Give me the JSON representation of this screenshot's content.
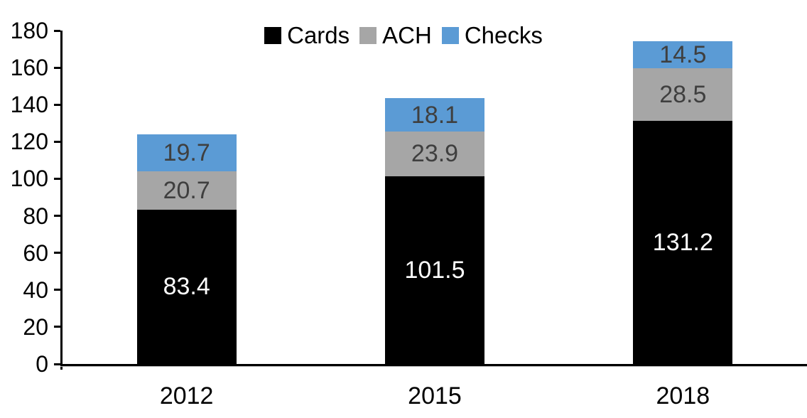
{
  "chart_data": {
    "type": "bar",
    "stacked": true,
    "title": "",
    "xlabel": "",
    "ylabel": "",
    "categories": [
      "2012",
      "2015",
      "2018"
    ],
    "series": [
      {
        "name": "Cards",
        "color": "#000000",
        "label_color": "#ffffff",
        "values": [
          83.4,
          101.5,
          131.2
        ]
      },
      {
        "name": "ACH",
        "color": "#a6a6a6",
        "label_color": "#3f3f3f",
        "values": [
          20.7,
          23.9,
          28.5
        ]
      },
      {
        "name": "Checks",
        "color": "#5b9bd5",
        "label_color": "#3f3f3f",
        "values": [
          19.7,
          18.1,
          14.5
        ]
      }
    ],
    "ylim": [
      0,
      180
    ],
    "yticks": [
      0,
      20,
      40,
      60,
      80,
      100,
      120,
      140,
      160,
      180
    ],
    "grid": false,
    "legend_position": "top",
    "axis_color": "#000000",
    "background_color": "#ffffff"
  }
}
